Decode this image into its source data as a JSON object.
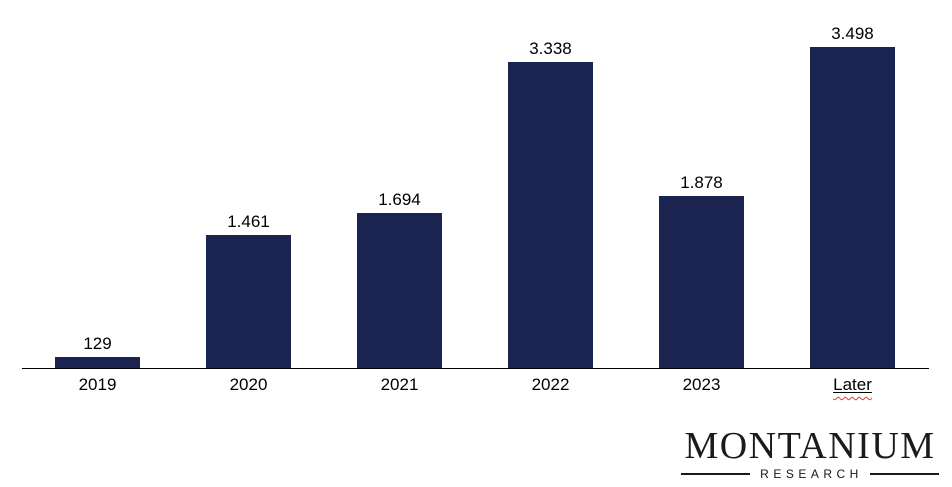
{
  "page": {
    "background": "#FFFFFF"
  },
  "chart_data": {
    "type": "bar",
    "title": "",
    "xlabel": "",
    "ylabel": "",
    "categories": [
      "2019",
      "2020",
      "2021",
      "2022",
      "2023",
      "Later"
    ],
    "values": [
      129,
      1461,
      1694,
      3338,
      1878,
      3498
    ],
    "data_labels": [
      "129",
      "1.461",
      "1.694",
      "3.338",
      "1.878",
      "3.498"
    ],
    "ylim": [
      0,
      3700
    ],
    "grid": false,
    "legend": "none",
    "bar_color": "#1B2350",
    "label_color": "#000000",
    "axis_color": "#000000",
    "underlined_category": "Later",
    "squiggle_color": "#E03A2E"
  },
  "logo": {
    "name": "MONTANIUM",
    "subtitle": "RESEARCH",
    "color": "#1B1B1B"
  }
}
